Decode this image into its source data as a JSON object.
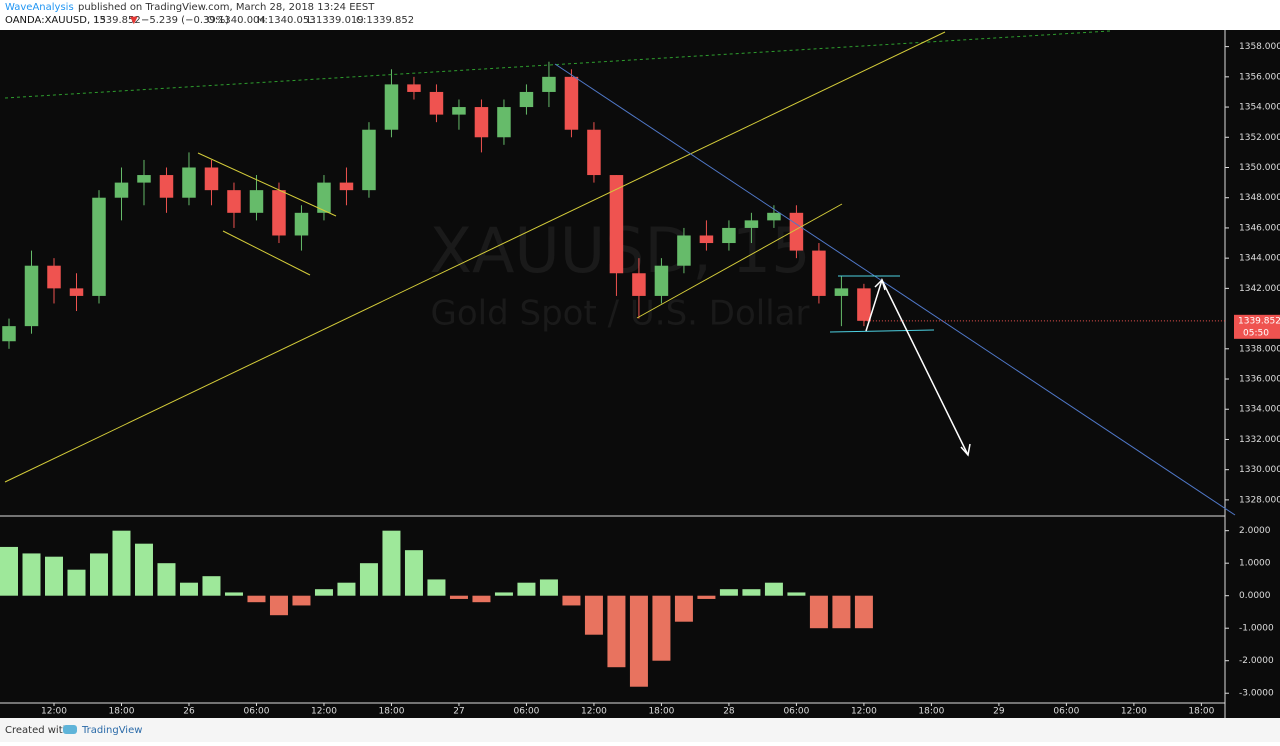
{
  "header": {
    "author": "WaveAnalysis",
    "published": "published on TradingView.com, March 28, 2018 13:24 EEST",
    "symbol": "OANDA:XAUUSD, 15",
    "last": "1339.852",
    "arrow": "▼",
    "change": "−5.239 (−0.39%)",
    "open": "O:1340.004",
    "high": "H:1340.053",
    "low": "L:1339.019",
    "close": "C:1339.852"
  },
  "watermark": {
    "symbol": "XAUUSD, 15",
    "description": "Gold Spot / U.S. Dollar"
  },
  "price_label": {
    "price": "1339.852",
    "countdown": "05:50"
  },
  "footer": {
    "created": "Created with",
    "brand": "TradingView"
  },
  "chart_data": {
    "type": "candlestick",
    "x": [
      8,
      10,
      12,
      14,
      16,
      18,
      20,
      22,
      24,
      26,
      28,
      30,
      32,
      34,
      36,
      38,
      40,
      42,
      44,
      46,
      48,
      50,
      52,
      54,
      56,
      58,
      60,
      62,
      64,
      66,
      68,
      70,
      72,
      74,
      76,
      78,
      80,
      82,
      84
    ],
    "open": [
      1338.5,
      1339.5,
      1343.5,
      1342,
      1341.5,
      1348,
      1349,
      1349.5,
      1348,
      1350,
      1348.5,
      1347,
      1348.5,
      1345.5,
      1347,
      1349,
      1348.5,
      1352.5,
      1355.5,
      1355,
      1353.5,
      1354,
      1352,
      1354,
      1355,
      1356,
      1352.5,
      1349.5,
      1343,
      1341.5,
      1343.5,
      1345.5,
      1345,
      1346,
      1346.5,
      1347,
      1344.5,
      1341.5,
      1342
    ],
    "high": [
      1340,
      1344.5,
      1344,
      1343,
      1348.5,
      1350,
      1350.5,
      1350,
      1351,
      1350.5,
      1349,
      1349.5,
      1349,
      1347.5,
      1349.5,
      1350,
      1353,
      1356.5,
      1356,
      1355.5,
      1354.5,
      1354.5,
      1354.5,
      1355.5,
      1357,
      1356.5,
      1353,
      1349.5,
      1344,
      1344,
      1346,
      1346.5,
      1346.5,
      1347,
      1347.5,
      1347.5,
      1345,
      1342.8,
      1342.3
    ],
    "low": [
      1338,
      1339,
      1341,
      1340.5,
      1341,
      1346.5,
      1347.5,
      1347,
      1347.5,
      1347.5,
      1346,
      1346.5,
      1345,
      1344.5,
      1346.5,
      1347.5,
      1348,
      1352,
      1354.5,
      1353,
      1352.5,
      1351,
      1351.5,
      1353.5,
      1354,
      1352,
      1349,
      1341.5,
      1340,
      1341,
      1343,
      1344.5,
      1344.5,
      1345,
      1346,
      1344,
      1341,
      1339.5,
      1339.5
    ],
    "close": [
      1339.5,
      1343.5,
      1342,
      1341.5,
      1348,
      1349,
      1349.5,
      1348,
      1350,
      1348.5,
      1347,
      1348.5,
      1345.5,
      1347,
      1349,
      1348.5,
      1352.5,
      1355.5,
      1355,
      1353.5,
      1354,
      1352,
      1354,
      1355,
      1356,
      1352.5,
      1349.5,
      1343,
      1341.5,
      1343.5,
      1345.5,
      1345,
      1346,
      1346.5,
      1347,
      1344.5,
      1341.5,
      1342,
      1339.852
    ],
    "up_color": "#66bb6a",
    "down_color": "#ef5350",
    "xlim": [
      7.2,
      116.1
    ],
    "xticks": [
      {
        "value": 12,
        "label": "12:00"
      },
      {
        "value": 18,
        "label": "18:00"
      },
      {
        "value": 24,
        "label": "26"
      },
      {
        "value": 30,
        "label": "06:00"
      },
      {
        "value": 36,
        "label": "12:00"
      },
      {
        "value": 42,
        "label": "18:00"
      },
      {
        "value": 48,
        "label": "27"
      },
      {
        "value": 54,
        "label": "06:00"
      },
      {
        "value": 60,
        "label": "12:00"
      },
      {
        "value": 66,
        "label": "18:00"
      },
      {
        "value": 72,
        "label": "28"
      },
      {
        "value": 78,
        "label": "06:00"
      },
      {
        "value": 84,
        "label": "12:00"
      },
      {
        "value": 90,
        "label": "18:00"
      },
      {
        "value": 96,
        "label": "29"
      },
      {
        "value": 102,
        "label": "06:00"
      },
      {
        "value": 108,
        "label": "12:00"
      },
      {
        "value": 114,
        "label": "18:00"
      }
    ],
    "ylim": [
      1327,
      1359.1
    ],
    "yticks": [
      {
        "value": 1328,
        "label": "1328.000"
      },
      {
        "value": 1330,
        "label": "1330.000"
      },
      {
        "value": 1332,
        "label": "1332.000"
      },
      {
        "value": 1334,
        "label": "1334.000"
      },
      {
        "value": 1336,
        "label": "1336.000"
      },
      {
        "value": 1338,
        "label": "1338.000"
      },
      {
        "value": 1342,
        "label": "1342.000"
      },
      {
        "value": 1344,
        "label": "1344.000"
      },
      {
        "value": 1346,
        "label": "1346.000"
      },
      {
        "value": 1348,
        "label": "1348.000"
      },
      {
        "value": 1350,
        "label": "1350.000"
      },
      {
        "value": 1352,
        "label": "1352.000"
      },
      {
        "value": 1354,
        "label": "1354.000"
      },
      {
        "value": 1356,
        "label": "1356.000"
      },
      {
        "value": 1358,
        "label": "1358.000"
      }
    ],
    "indicator": {
      "type": "bar",
      "values": [
        1.5,
        1.3,
        1.2,
        0.8,
        1.3,
        2.0,
        1.6,
        1.0,
        0.4,
        0.6,
        0.1,
        -0.2,
        -0.6,
        -0.3,
        0.2,
        0.4,
        1.0,
        2.0,
        1.4,
        0.5,
        -0.1,
        -0.2,
        0.1,
        0.4,
        0.5,
        -0.3,
        -1.2,
        -2.2,
        -2.8,
        -2.0,
        -0.8,
        -0.1,
        0.2,
        0.2,
        0.4,
        0.1,
        -1.0,
        -1.0,
        -1.0
      ],
      "positive_color": "#9ee89a",
      "negative_color": "#e8735f",
      "ylim": [
        -3.27,
        2.39
      ],
      "yticks": [
        {
          "value": 2,
          "label": "2.0000"
        },
        {
          "value": 1,
          "label": "1.0000"
        },
        {
          "value": 0,
          "label": "0.0000"
        },
        {
          "value": -1,
          "label": "-1.0000"
        },
        {
          "value": -2,
          "label": "-2.0000"
        },
        {
          "value": -3,
          "label": "-3.0000"
        }
      ]
    }
  }
}
